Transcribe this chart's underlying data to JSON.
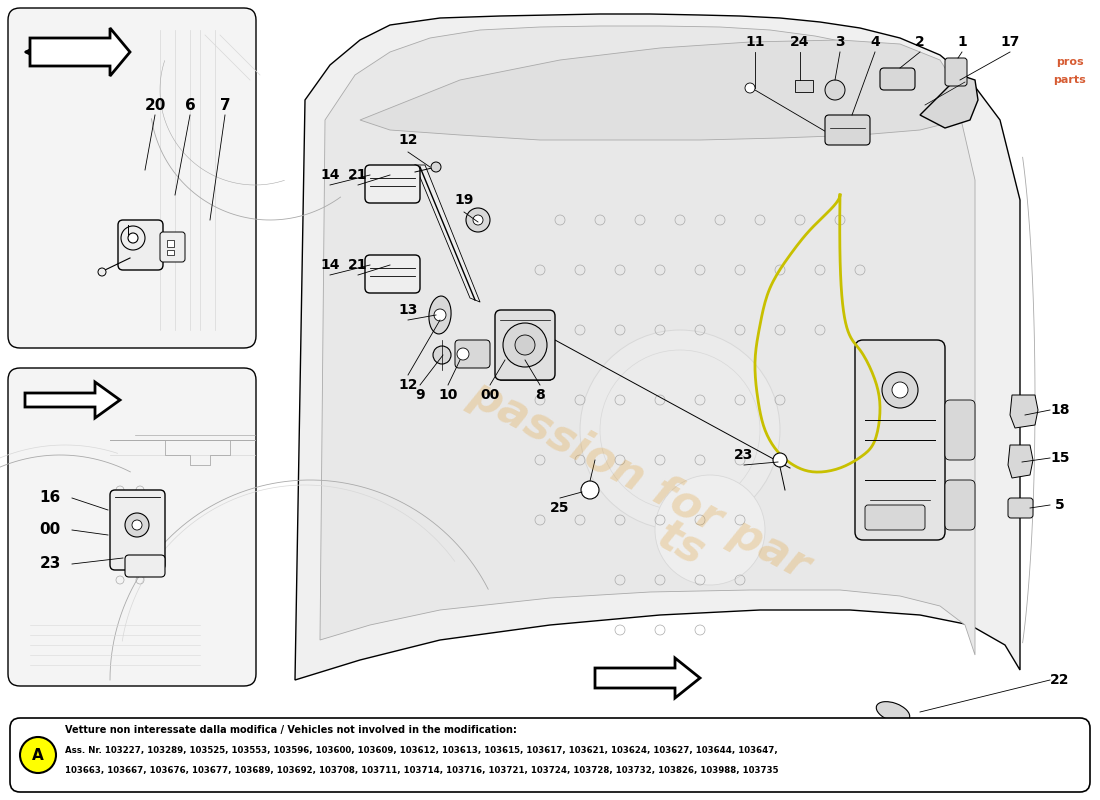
{
  "bg_color": "#ffffff",
  "footer_title": "Vetture non interessate dalla modifica / Vehicles not involved in the modification:",
  "footer_line1": "Ass. Nr. 103227, 103289, 103525, 103553, 103596, 103600, 103609, 103612, 103613, 103615, 103617, 103621, 103624, 103627, 103644, 103647,",
  "footer_line2": "103663, 103667, 103676, 103677, 103689, 103692, 103708, 103711, 103714, 103716, 103721, 103724, 103728, 103732, 103826, 103988, 103735",
  "label_A_color": "#ffff00",
  "watermark_line1": "passion for par",
  "watermark_line2": "ts",
  "watermark_color": "#e09820",
  "watermark_alpha": 0.25,
  "outline_color": "#000000",
  "light_gray": "#d8d8d8",
  "mid_gray": "#aaaaaa",
  "dark_gray": "#555555",
  "very_light_gray": "#eeeeee",
  "yellow_line": "#c8c000",
  "inset_bg": "#f4f4f4"
}
